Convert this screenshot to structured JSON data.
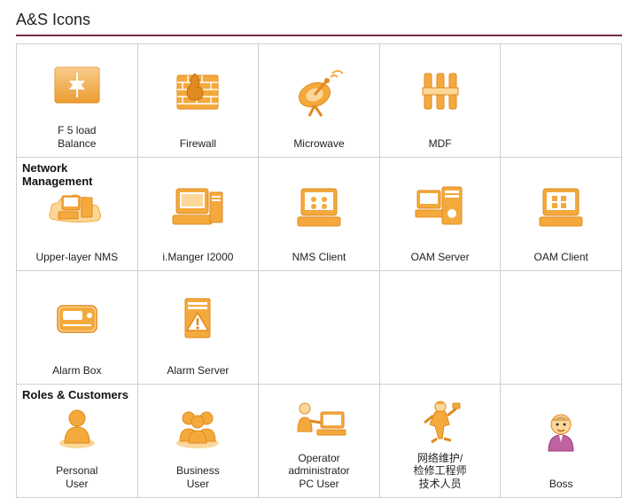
{
  "title": "A&S Icons",
  "hr_color": "#772a4a",
  "grid_border": "#cfcfcf",
  "palette": {
    "orange_dark": "#e08a1f",
    "orange_mid": "#f4a93c",
    "orange_light": "#fcd79a",
    "shadow": "#d9a964",
    "white": "#ffffff",
    "black": "#222222"
  },
  "sections": [
    {
      "header": "",
      "cells": [
        {
          "icon": "f5",
          "label": "F 5 load\nBalance"
        },
        {
          "icon": "firewall",
          "label": "Firewall"
        },
        {
          "icon": "microwave",
          "label": "Microwave"
        },
        {
          "icon": "mdf",
          "label": "MDF"
        },
        {
          "icon": "",
          "label": ""
        }
      ]
    },
    {
      "header": "Network Management",
      "cells": [
        {
          "icon": "nms-upper",
          "label": "Upper-layer NMS"
        },
        {
          "icon": "imanager",
          "label": "i.Manger I2000"
        },
        {
          "icon": "nms-client",
          "label": "NMS Client"
        },
        {
          "icon": "oam-server",
          "label": "OAM Server"
        },
        {
          "icon": "oam-client",
          "label": "OAM Client"
        }
      ]
    },
    {
      "header": "",
      "cells": [
        {
          "icon": "alarm-box",
          "label": "Alarm Box"
        },
        {
          "icon": "alarm-server",
          "label": "Alarm Server"
        },
        {
          "icon": "",
          "label": ""
        },
        {
          "icon": "",
          "label": ""
        },
        {
          "icon": "",
          "label": ""
        }
      ]
    },
    {
      "header": "Roles & Customers",
      "cells": [
        {
          "icon": "personal-user",
          "label": "Personal\nUser"
        },
        {
          "icon": "business-user",
          "label": "Business\nUser"
        },
        {
          "icon": "operator",
          "label": "Operator\nadministrator\nPC User"
        },
        {
          "icon": "engineer",
          "label": "网络维护/\n检修工程师\n技术人员"
        },
        {
          "icon": "boss",
          "label": "Boss"
        }
      ]
    }
  ]
}
